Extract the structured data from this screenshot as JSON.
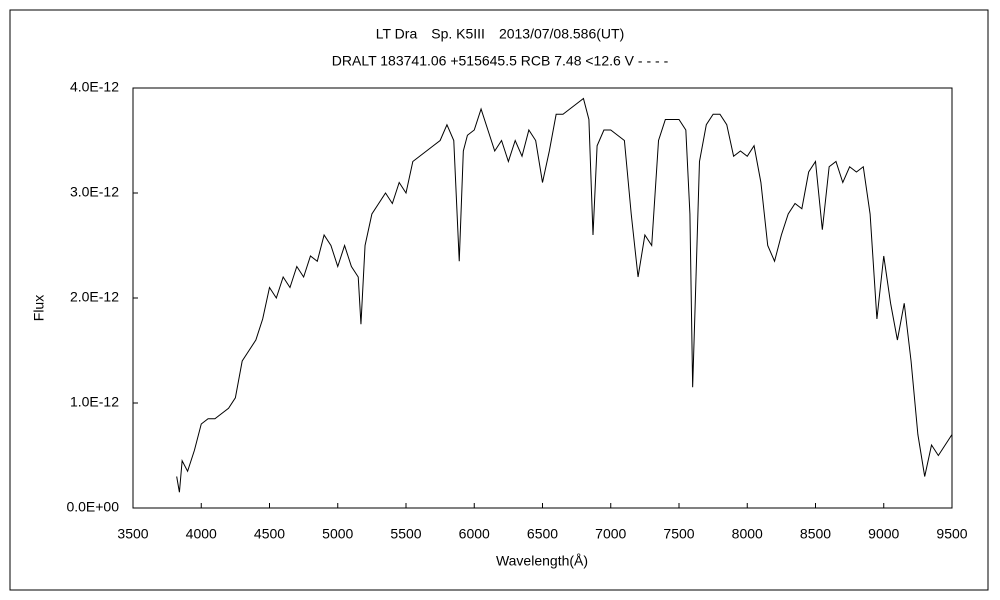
{
  "chart_data": {
    "type": "line",
    "title": "LT Dra　Sp. K5III　2013/07/08.586(UT)",
    "subtitle": "DRALT 183741.06 +515645.5 RCB 7.48 <12.6 V - - - -",
    "x_label": "Wavelength(Å)",
    "y_label": "Flux",
    "color": "#000000",
    "xlim": [
      3500,
      9500
    ],
    "xticks": [
      3500,
      4000,
      4500,
      5000,
      5500,
      6000,
      6500,
      7000,
      7500,
      8000,
      8500,
      9000,
      9500
    ],
    "ylim": [
      0,
      4e-12
    ],
    "yticks": [
      {
        "value": 0,
        "label": "0.0E+00"
      },
      {
        "value": 1e-12,
        "label": "1.0E-12"
      },
      {
        "value": 2e-12,
        "label": "2.0E-12"
      },
      {
        "value": 3e-12,
        "label": "3.0E-12"
      },
      {
        "value": 4e-12,
        "label": "4.0E-12"
      }
    ],
    "x": [
      3820,
      3840,
      3860,
      3900,
      3950,
      4000,
      4050,
      4100,
      4150,
      4200,
      4250,
      4300,
      4350,
      4400,
      4450,
      4500,
      4550,
      4600,
      4650,
      4700,
      4750,
      4800,
      4850,
      4900,
      4950,
      5000,
      5050,
      5100,
      5150,
      5170,
      5200,
      5250,
      5300,
      5350,
      5400,
      5450,
      5500,
      5550,
      5600,
      5650,
      5700,
      5750,
      5800,
      5850,
      5890,
      5920,
      5950,
      6000,
      6050,
      6100,
      6150,
      6200,
      6250,
      6300,
      6350,
      6400,
      6450,
      6500,
      6550,
      6600,
      6650,
      6700,
      6750,
      6800,
      6840,
      6870,
      6900,
      6950,
      7000,
      7050,
      7100,
      7150,
      7200,
      7250,
      7300,
      7350,
      7400,
      7450,
      7500,
      7550,
      7580,
      7600,
      7620,
      7650,
      7700,
      7750,
      7800,
      7850,
      7900,
      7950,
      8000,
      8050,
      8100,
      8150,
      8200,
      8250,
      8300,
      8350,
      8400,
      8450,
      8500,
      8550,
      8600,
      8650,
      8700,
      8750,
      8800,
      8850,
      8900,
      8950,
      9000,
      9050,
      9100,
      9150,
      9200,
      9250,
      9300,
      9350,
      9400,
      9450,
      9500
    ],
    "values": [
      3e-13,
      1.5e-13,
      4.5e-13,
      3.5e-13,
      5.5e-13,
      8e-13,
      8.5e-13,
      8.5e-13,
      9e-13,
      9.5e-13,
      1.05e-12,
      1.4e-12,
      1.5e-12,
      1.6e-12,
      1.8e-12,
      2.1e-12,
      2e-12,
      2.2e-12,
      2.1e-12,
      2.3e-12,
      2.2e-12,
      2.4e-12,
      2.35e-12,
      2.6e-12,
      2.5e-12,
      2.3e-12,
      2.5e-12,
      2.3e-12,
      2.2e-12,
      1.75e-12,
      2.5e-12,
      2.8e-12,
      2.9e-12,
      3e-12,
      2.9e-12,
      3.1e-12,
      3e-12,
      3.3e-12,
      3.35e-12,
      3.4e-12,
      3.45e-12,
      3.5e-12,
      3.65e-12,
      3.5e-12,
      2.35e-12,
      3.4e-12,
      3.55e-12,
      3.6e-12,
      3.8e-12,
      3.6e-12,
      3.4e-12,
      3.5e-12,
      3.3e-12,
      3.5e-12,
      3.35e-12,
      3.6e-12,
      3.5e-12,
      3.1e-12,
      3.4e-12,
      3.75e-12,
      3.75e-12,
      3.8e-12,
      3.85e-12,
      3.9e-12,
      3.7e-12,
      2.6e-12,
      3.45e-12,
      3.6e-12,
      3.6e-12,
      3.55e-12,
      3.5e-12,
      2.8e-12,
      2.2e-12,
      2.6e-12,
      2.5e-12,
      3.5e-12,
      3.7e-12,
      3.7e-12,
      3.7e-12,
      3.6e-12,
      2.8e-12,
      1.15e-12,
      2e-12,
      3.3e-12,
      3.65e-12,
      3.75e-12,
      3.75e-12,
      3.65e-12,
      3.35e-12,
      3.4e-12,
      3.35e-12,
      3.45e-12,
      3.1e-12,
      2.5e-12,
      2.35e-12,
      2.6e-12,
      2.8e-12,
      2.9e-12,
      2.85e-12,
      3.2e-12,
      3.3e-12,
      2.65e-12,
      3.25e-12,
      3.3e-12,
      3.1e-12,
      3.25e-12,
      3.2e-12,
      3.25e-12,
      2.8e-12,
      1.8e-12,
      2.4e-12,
      1.95e-12,
      1.6e-12,
      1.95e-12,
      1.4e-12,
      7e-13,
      3e-13,
      6e-13,
      5e-13,
      6e-13,
      7e-13
    ]
  }
}
